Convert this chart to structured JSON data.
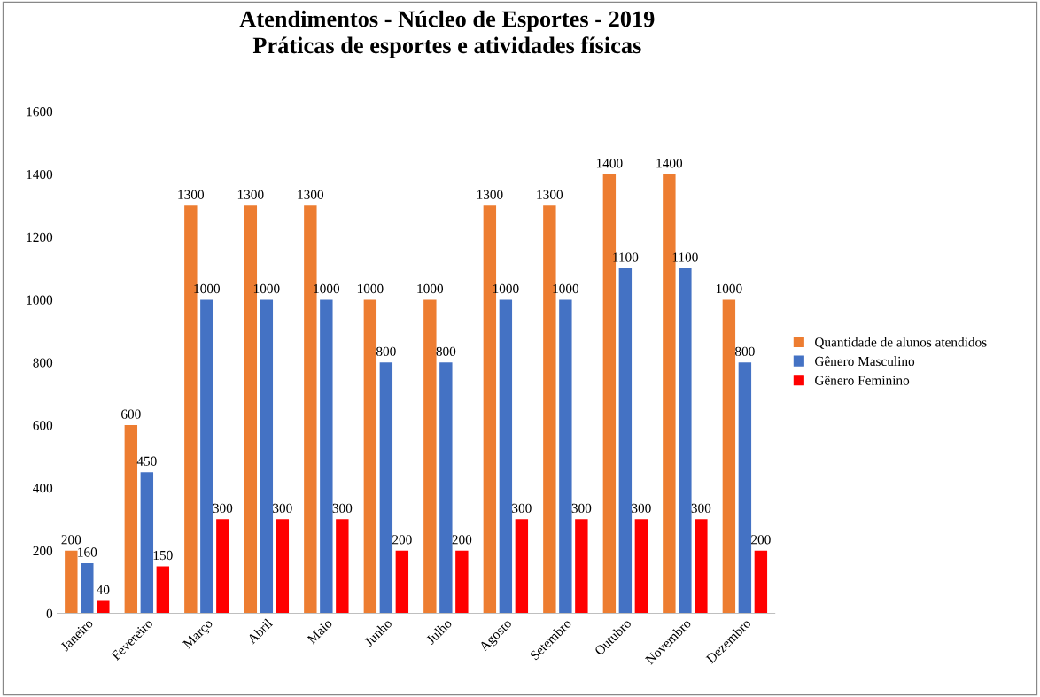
{
  "chart_data": {
    "type": "bar",
    "title": "Atendimentos - Núcleo de Esportes - 2019\nPráticas de esportes e atividades físicas",
    "categories": [
      "Janeiro",
      "Fevereiro",
      "Março",
      "Abril",
      "Maio",
      "Junho",
      "Julho",
      "Agosto",
      "Setembro",
      "Outubro",
      "Novembro",
      "Dezembro"
    ],
    "series": [
      {
        "name": "Quantidade de alunos atendidos",
        "color": "#ed7d31",
        "values": [
          200,
          600,
          1300,
          1300,
          1300,
          1000,
          1000,
          1300,
          1300,
          1400,
          1400,
          1000
        ]
      },
      {
        "name": "Gênero Masculino",
        "color": "#4472c4",
        "values": [
          160,
          450,
          1000,
          1000,
          1000,
          800,
          800,
          1000,
          1000,
          1100,
          1100,
          800
        ]
      },
      {
        "name": "Gênero Feminino",
        "color": "#ff0000",
        "values": [
          40,
          150,
          300,
          300,
          300,
          200,
          200,
          300,
          300,
          300,
          300,
          200
        ]
      }
    ],
    "ylim": [
      0,
      1600
    ],
    "yticks": [
      0,
      200,
      400,
      600,
      800,
      1000,
      1200,
      1400,
      1600
    ],
    "data_labels": true,
    "legend": "right",
    "grid": false
  }
}
